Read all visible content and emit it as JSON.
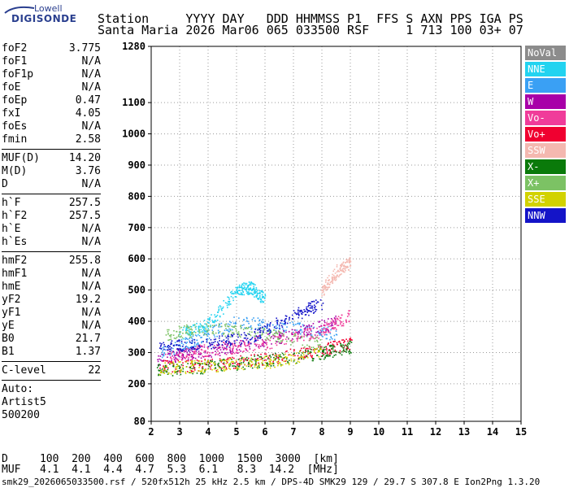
{
  "logo": {
    "top": "Lowell",
    "bottom": "DIGISONDE"
  },
  "header": {
    "line1": "Station     YYYY DAY   DDD HHMMSS P1  FFS S AXN PPS IGA PS",
    "line2": "Santa Maria 2026 Mar06 065 033500 RSF     1 713 100 03+ 07"
  },
  "params": [
    {
      "group": [
        {
          "label": "foF2",
          "value": "3.775"
        },
        {
          "label": "foF1",
          "value": "N/A"
        },
        {
          "label": "foF1p",
          "value": "N/A"
        },
        {
          "label": "foE",
          "value": "N/A"
        },
        {
          "label": "foEp",
          "value": "0.47"
        },
        {
          "label": "fxI",
          "value": "4.05"
        },
        {
          "label": "foEs",
          "value": "N/A"
        },
        {
          "label": "fmin",
          "value": "2.58"
        }
      ]
    },
    {
      "group": [
        {
          "label": "MUF(D)",
          "value": "14.20"
        },
        {
          "label": "M(D)",
          "value": "3.76"
        },
        {
          "label": "D",
          "value": "N/A"
        }
      ]
    },
    {
      "group": [
        {
          "label": "h`F",
          "value": "257.5"
        },
        {
          "label": "h`F2",
          "value": "257.5"
        },
        {
          "label": "h`E",
          "value": "N/A"
        },
        {
          "label": "h`Es",
          "value": "N/A"
        }
      ]
    },
    {
      "group": [
        {
          "label": "hmF2",
          "value": "255.8"
        },
        {
          "label": "hmF1",
          "value": "N/A"
        },
        {
          "label": "hmE",
          "value": "N/A"
        },
        {
          "label": "yF2",
          "value": "19.2"
        },
        {
          "label": "yF1",
          "value": "N/A"
        },
        {
          "label": "yE",
          "value": "N/A"
        },
        {
          "label": "B0",
          "value": "21.7"
        },
        {
          "label": "B1",
          "value": "1.37"
        }
      ]
    },
    {
      "group": [
        {
          "label": "C-level",
          "value": "22"
        }
      ]
    }
  ],
  "auto": [
    "Auto:",
    "Artist5",
    "500200"
  ],
  "legend": [
    {
      "label": "NoVal",
      "color": "#8c8c8c"
    },
    {
      "label": "NNE",
      "color": "#22d3f0"
    },
    {
      "label": "E",
      "color": "#3aa0f4"
    },
    {
      "label": "W",
      "color": "#a800a8"
    },
    {
      "label": "Vo-",
      "color": "#f03c9a"
    },
    {
      "label": "Vo+",
      "color": "#f00030"
    },
    {
      "label": "SSW",
      "color": "#f4b8b0"
    },
    {
      "label": "X-",
      "color": "#0a7a0a"
    },
    {
      "label": "X+",
      "color": "#7cc264"
    },
    {
      "label": "SSE",
      "color": "#d2d200"
    },
    {
      "label": "NNW",
      "color": "#1414c8"
    }
  ],
  "footer": {
    "d_row": "D     100  200  400  600  800  1000  1500  3000  [km]",
    "muf_row": "MUF   4.1  4.1  4.4  4.7  5.3  6.1   8.3  14.2  [MHz]",
    "file_line": "smk29_2026065033500.rsf / 520fx512h 25 kHz 2.5 km / DPS-4D SMK29 129 / 29.7 S 307.8 E Ion2Png 1.3.20"
  },
  "chart_data": {
    "type": "scatter",
    "title": "",
    "xlabel": "",
    "ylabel": "",
    "xlim": [
      2,
      15
    ],
    "ylim": [
      80,
      1280
    ],
    "x_ticks": [
      2,
      3,
      4,
      5,
      6,
      7,
      8,
      9,
      10,
      11,
      12,
      13,
      14,
      15
    ],
    "y_ticks": [
      80,
      200,
      300,
      400,
      500,
      600,
      700,
      800,
      900,
      1000,
      1100,
      1280
    ],
    "grid": "dotted",
    "legend_placement": "right",
    "series": [
      {
        "name": "NNE",
        "trace": [
          [
            3.0,
            360
          ],
          [
            4.0,
            390
          ],
          [
            5.0,
            500
          ],
          [
            5.5,
            510
          ],
          [
            6.0,
            470
          ]
        ]
      },
      {
        "name": "E",
        "trace": [
          [
            2.3,
            300
          ],
          [
            3.5,
            340
          ],
          [
            5.0,
            400
          ],
          [
            7.0,
            380
          ],
          [
            8.5,
            360
          ]
        ]
      },
      {
        "name": "W",
        "trace": [
          [
            2.2,
            280
          ],
          [
            3.5,
            300
          ],
          [
            5.0,
            320
          ],
          [
            7.0,
            360
          ],
          [
            8.5,
            400
          ]
        ]
      },
      {
        "name": "Vo-",
        "trace": [
          [
            2.5,
            290
          ],
          [
            4.0,
            310
          ],
          [
            6.0,
            330
          ],
          [
            8.0,
            370
          ],
          [
            9.0,
            420
          ]
        ]
      },
      {
        "name": "Vo+",
        "trace": [
          [
            2.2,
            255
          ],
          [
            4.0,
            262
          ],
          [
            6.0,
            280
          ],
          [
            8.0,
            310
          ],
          [
            9.0,
            330
          ]
        ]
      },
      {
        "name": "SSW",
        "trace": [
          [
            8.0,
            500
          ],
          [
            8.5,
            560
          ],
          [
            9.0,
            590
          ]
        ]
      },
      {
        "name": "X-",
        "trace": [
          [
            2.2,
            245
          ],
          [
            4.0,
            255
          ],
          [
            6.0,
            275
          ],
          [
            8.0,
            300
          ],
          [
            9.0,
            320
          ]
        ]
      },
      {
        "name": "X+",
        "trace": [
          [
            2.5,
            360
          ],
          [
            4.0,
            380
          ],
          [
            6.0,
            360
          ],
          [
            8.0,
            330
          ]
        ]
      },
      {
        "name": "SSE",
        "trace": [
          [
            2.2,
            250
          ],
          [
            4.0,
            258
          ],
          [
            6.0,
            270
          ],
          [
            8.0,
            300
          ]
        ]
      },
      {
        "name": "NNW",
        "trace": [
          [
            2.3,
            320
          ],
          [
            4.0,
            330
          ],
          [
            5.5,
            350
          ],
          [
            7.0,
            420
          ],
          [
            8.0,
            460
          ]
        ]
      }
    ]
  }
}
